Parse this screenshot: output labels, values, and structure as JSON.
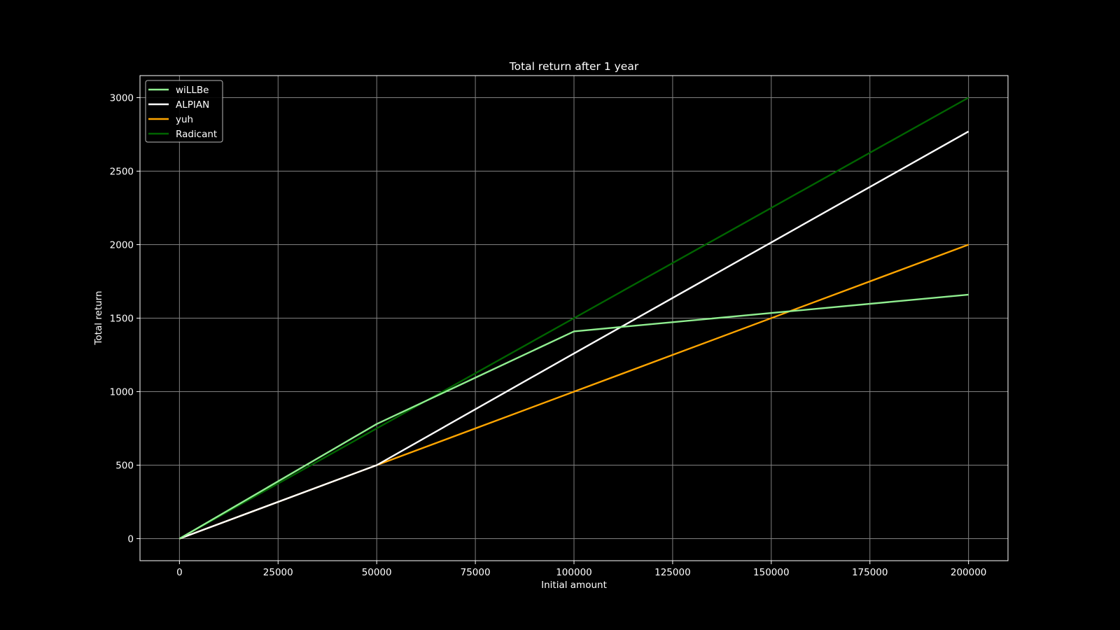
{
  "chart_data": {
    "type": "line",
    "title": "Total return after 1 year",
    "xlabel": "Initial amount",
    "ylabel": "Total return",
    "xlim": [
      -10000,
      210000
    ],
    "ylim": [
      -150,
      3150
    ],
    "xticks": [
      0,
      25000,
      50000,
      75000,
      100000,
      125000,
      150000,
      175000,
      200000
    ],
    "yticks": [
      0,
      500,
      1000,
      1500,
      2000,
      2500,
      3000
    ],
    "grid": true,
    "legend_position": "top-left",
    "background": "#000000",
    "x": [
      0,
      50000,
      100000,
      200000
    ],
    "series": [
      {
        "name": "wiLLBe",
        "color": "#90ee90",
        "values": [
          0,
          780,
          1410,
          1660
        ]
      },
      {
        "name": "ALPIAN",
        "color": "#ffffff",
        "values": [
          0,
          500,
          1260,
          2770
        ]
      },
      {
        "name": "yuh",
        "color": "#ffa500",
        "values": [
          0,
          500,
          1000,
          2000
        ]
      },
      {
        "name": "Radicant",
        "color": "#006400",
        "values": [
          0,
          750,
          1500,
          3000
        ]
      }
    ]
  }
}
